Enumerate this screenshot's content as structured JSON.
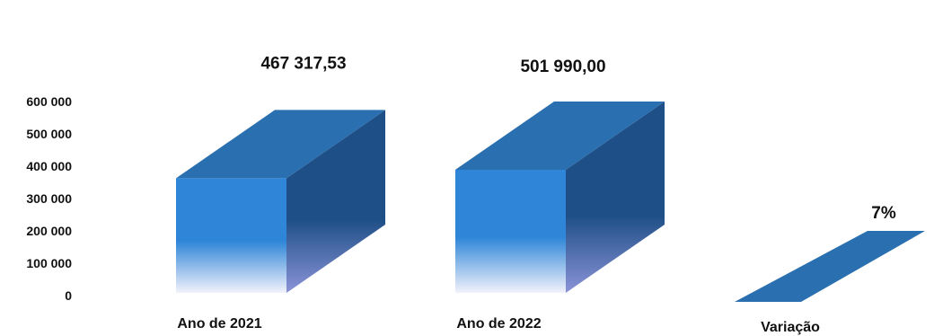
{
  "chart_data": {
    "type": "bar",
    "style": "3d",
    "categories": [
      "Ano de 2021",
      "Ano de 2022",
      "Variação"
    ],
    "values": [
      467317.53,
      501990.0,
      0.07
    ],
    "data_labels": [
      "467 317,53",
      "501 990,00",
      "7%"
    ],
    "y_ticks": [
      "600 000",
      "500 000",
      "400 000",
      "300 000",
      "200 000",
      "100 000",
      "0"
    ],
    "y_tick_values": [
      600000,
      500000,
      400000,
      300000,
      200000,
      100000,
      0
    ],
    "ylim": [
      0,
      600000
    ],
    "grid": false,
    "legend": "none",
    "title": "",
    "xlabel": "",
    "ylabel": "",
    "colors": {
      "front_top": "#2f86d8",
      "front_bottom": "#f2f2fb",
      "side_top": "#1f4f87",
      "side_bottom": "#8a93d8",
      "top": "#2a6faf"
    }
  }
}
